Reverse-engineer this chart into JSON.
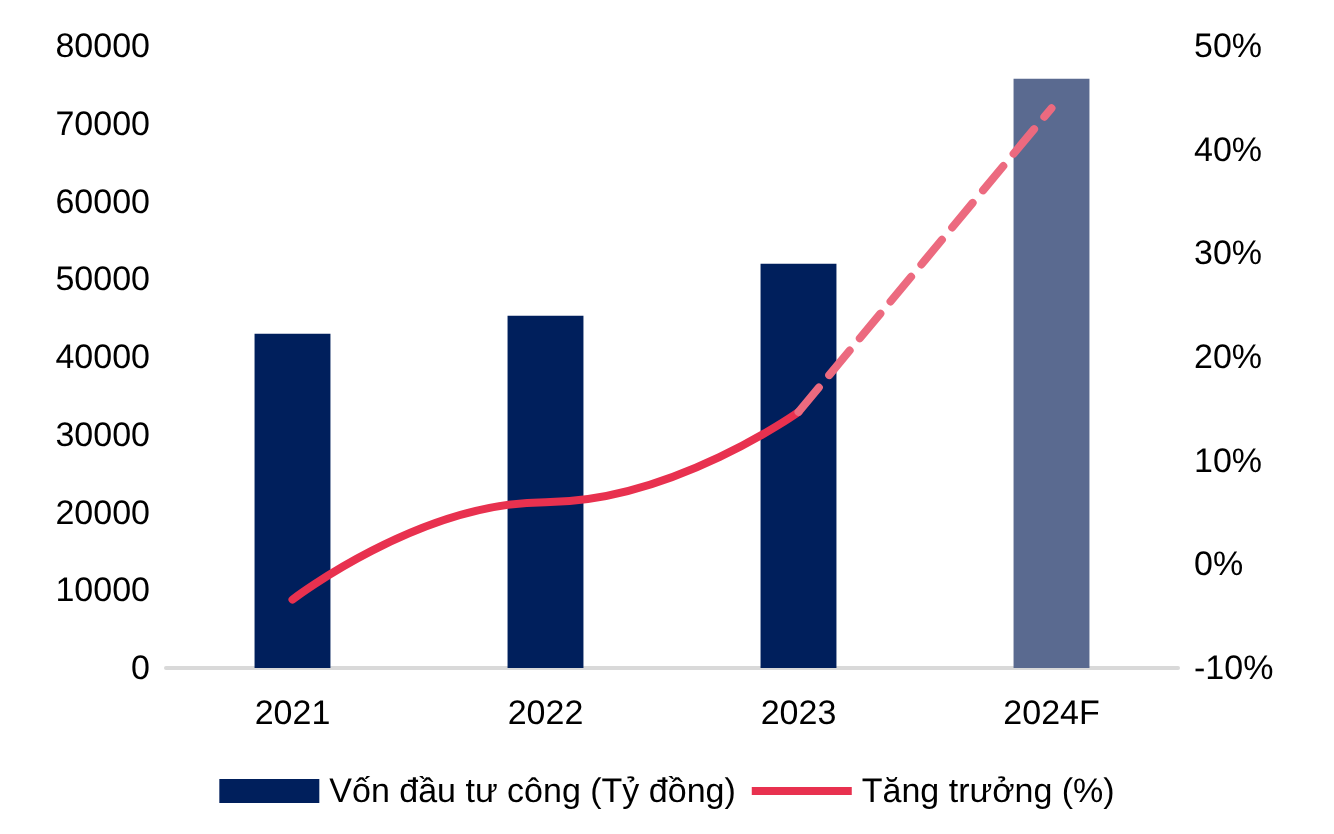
{
  "chart_data": {
    "type": "bar",
    "categories": [
      "2021",
      "2022",
      "2023",
      "2024F"
    ],
    "series": [
      {
        "name": "Vốn đầu tư công (Tỷ đồng)",
        "color": "#001f5c",
        "colors": [
          "#001f5c",
          "#001f5c",
          "#001f5c",
          "#5a6a90"
        ],
        "values": [
          43000,
          45300,
          52000,
          75800
        ]
      },
      {
        "name": "Tăng trưởng (%)",
        "type": "line",
        "axis": "y2",
        "color": "#e8314f",
        "line_style": "solid",
        "values": [
          -3.4,
          6,
          14.7,
          null
        ]
      },
      {
        "type": "line",
        "axis": "y2",
        "color": "#ec6a7f",
        "line_style": "dashed",
        "values": [
          null,
          null,
          14.7,
          44
        ]
      }
    ],
    "ylim": [
      0,
      80000
    ],
    "yticks": [
      0,
      10000,
      20000,
      30000,
      40000,
      50000,
      60000,
      70000,
      80000
    ],
    "y2lim": [
      -10,
      50
    ],
    "y2ticks": [
      {
        "value": -10,
        "label": "-10%"
      },
      {
        "value": 0,
        "label": "0%"
      },
      {
        "value": 10,
        "label": "10%"
      },
      {
        "value": 20,
        "label": "20%"
      },
      {
        "value": 30,
        "label": "30%"
      },
      {
        "value": 40,
        "label": "40%"
      },
      {
        "value": 50,
        "label": "50%"
      }
    ],
    "grid": false,
    "legend": "bottom",
    "marker": "none"
  }
}
